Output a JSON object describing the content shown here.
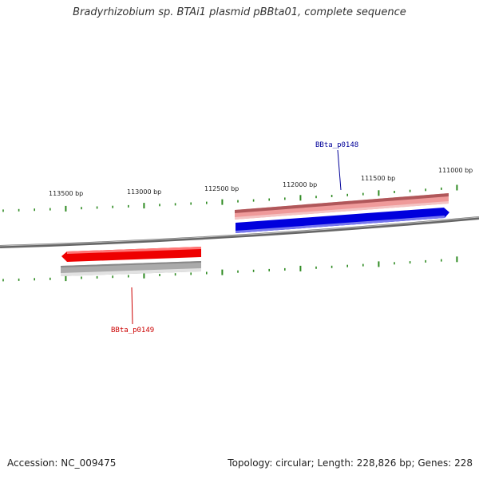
{
  "title": "Bradyrhizobium sp. BTAi1 plasmid pBBta01, complete sequence",
  "accession": "Accession: NC_009475",
  "summary": "Topology: circular; Length: 228,826 bp; Genes: 228",
  "colors": {
    "backbone": "#888888",
    "ticks": "#2e8b22",
    "forward_gene": "#0000dd",
    "reverse_gene": "#ee0000",
    "forward_feature": "#e88888",
    "reverse_feature": "#aaaaaa",
    "forward_label": "#000099",
    "reverse_label": "#cc0000"
  },
  "scale_labels": [
    "111000 bp",
    "111500 bp",
    "112000 bp",
    "112500 bp",
    "113000 bp",
    "113500 bp"
  ],
  "genes": [
    {
      "name": "BBta_p0148",
      "strand": "forward"
    },
    {
      "name": "BBta_p0149",
      "strand": "reverse"
    }
  ]
}
